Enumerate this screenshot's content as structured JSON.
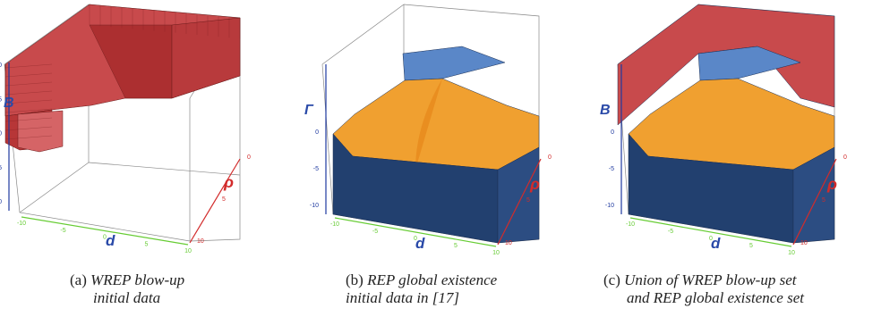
{
  "colors": {
    "blowup_red": "#c0393b",
    "global_orange": "#f0a030",
    "global_blue": "#5a87c8",
    "global_side": "#22406f",
    "axis_d": "#66cc33",
    "axis_rho": "#d22b2b",
    "axis_B": "#1f3aa0",
    "label_blue": "#2a4aa8"
  },
  "axes": {
    "d_label": "d",
    "rho_label": "ρ",
    "B_label": "B",
    "Gamma_label": "Γ",
    "d_ticks": [
      "-10",
      "-5",
      "0",
      "5",
      "10"
    ],
    "rho_ticks": [
      "0",
      "5",
      "10"
    ],
    "v_ticks": [
      "10",
      "5",
      "0",
      "-5",
      "-10"
    ]
  },
  "panels": [
    {
      "id": "a",
      "tag": "(a)",
      "caption_lines": [
        "WREP blow-up",
        "initial data"
      ]
    },
    {
      "id": "b",
      "tag": "(b)",
      "caption_lines": [
        "REP global existence",
        "initial data in [17]"
      ]
    },
    {
      "id": "c",
      "tag": "(c)",
      "caption_lines": [
        "Union of WREP blow-up set",
        "and REP global existence set"
      ]
    }
  ]
}
